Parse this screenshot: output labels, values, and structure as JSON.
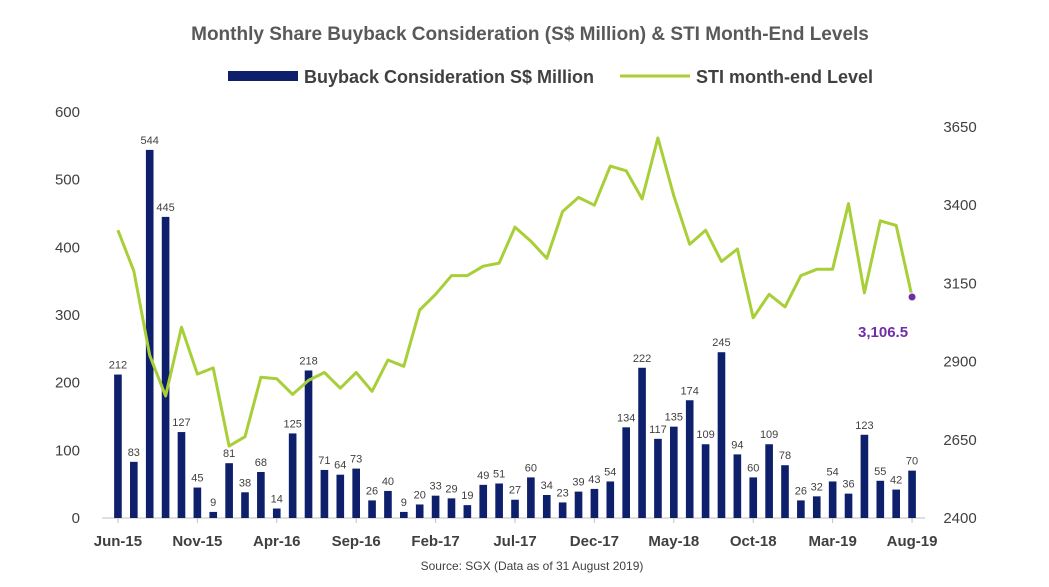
{
  "chart_data": {
    "type": "bar+line",
    "title": "Monthly Share Buyback Consideration (S$ Million) & STI Month-End Levels",
    "source": "Source: SGX (Data as of 31 August 2019)",
    "categories": [
      "Jun-15",
      "Jul-15",
      "Aug-15",
      "Sep-15",
      "Oct-15",
      "Nov-15",
      "Dec-15",
      "Jan-16",
      "Feb-16",
      "Mar-16",
      "Apr-16",
      "May-16",
      "Jun-16",
      "Jul-16",
      "Aug-16",
      "Sep-16",
      "Oct-16",
      "Nov-16",
      "Dec-16",
      "Jan-17",
      "Feb-17",
      "Mar-17",
      "Apr-17",
      "May-17",
      "Jun-17",
      "Jul-17",
      "Aug-17",
      "Sep-17",
      "Oct-17",
      "Nov-17",
      "Dec-17",
      "Jan-18",
      "Feb-18",
      "Mar-18",
      "Apr-18",
      "May-18",
      "Jun-18",
      "Jul-18",
      "Aug-18",
      "Sep-18",
      "Oct-18",
      "Nov-18",
      "Dec-18",
      "Jan-19",
      "Feb-19",
      "Mar-19",
      "Apr-19",
      "May-19",
      "Jun-19",
      "Jul-19",
      "Aug-19"
    ],
    "x_tick_labels": [
      "Jun-15",
      "Nov-15",
      "Apr-16",
      "Sep-16",
      "Feb-17",
      "Jul-17",
      "Dec-17",
      "May-18",
      "Oct-18",
      "Mar-19",
      "Aug-19"
    ],
    "series": [
      {
        "name": "Buyback Consideration S$ Million",
        "type": "bar",
        "axis": "left",
        "color": "#0e1f6b",
        "values": [
          212,
          83,
          544,
          445,
          127,
          45,
          9,
          81,
          38,
          68,
          14,
          125,
          218,
          71,
          64,
          73,
          26,
          40,
          9,
          20,
          33,
          29,
          19,
          49,
          51,
          27,
          60,
          34,
          23,
          39,
          43,
          54,
          134,
          222,
          117,
          135,
          174,
          109,
          245,
          94,
          60,
          109,
          78,
          26,
          32,
          54,
          36,
          123,
          55,
          42,
          70
        ],
        "labels": [
          "212",
          "83",
          "544",
          "445",
          "127",
          "45",
          "9",
          "81",
          "38",
          "68",
          "14",
          "125",
          "218",
          "71",
          "64",
          "73",
          "26",
          "40",
          "9",
          "20",
          "33",
          "29",
          "19",
          "49",
          "51",
          "27",
          "60",
          "34",
          "23",
          "39",
          "43",
          "54",
          "134",
          "222",
          "117",
          "135",
          "174",
          "109",
          "245",
          "94",
          "60",
          "109",
          "78",
          "26",
          "32",
          "54",
          "36",
          "123",
          "55",
          "42",
          "70"
        ]
      },
      {
        "name": "STI month-end Level",
        "type": "line",
        "axis": "right",
        "color": "#a9cf38",
        "values": [
          3320,
          3190,
          2920,
          2790,
          3010,
          2860,
          2880,
          2630,
          2660,
          2850,
          2845,
          2795,
          2840,
          2865,
          2815,
          2865,
          2805,
          2905,
          2885,
          3065,
          3115,
          3175,
          3175,
          3205,
          3215,
          3330,
          3285,
          3230,
          3380,
          3425,
          3400,
          3525,
          3510,
          3420,
          3615,
          3430,
          3275,
          3320,
          3220,
          3260,
          3040,
          3115,
          3075,
          3175,
          3195,
          3195,
          3405,
          3120,
          3350,
          3335,
          3106.5
        ],
        "last_label": "3,106.5",
        "last_marker_color": "#6f2da8"
      }
    ],
    "y_left": {
      "ticks": [
        "0",
        "100",
        "200",
        "300",
        "400",
        "500",
        "600"
      ],
      "ylim": [
        0,
        600
      ]
    },
    "y_right": {
      "ticks": [
        "2400",
        "2650",
        "2900",
        "3150",
        "3400",
        "3650"
      ],
      "ylim": [
        2400,
        3700
      ]
    },
    "grid": false,
    "legend_position": "top"
  }
}
